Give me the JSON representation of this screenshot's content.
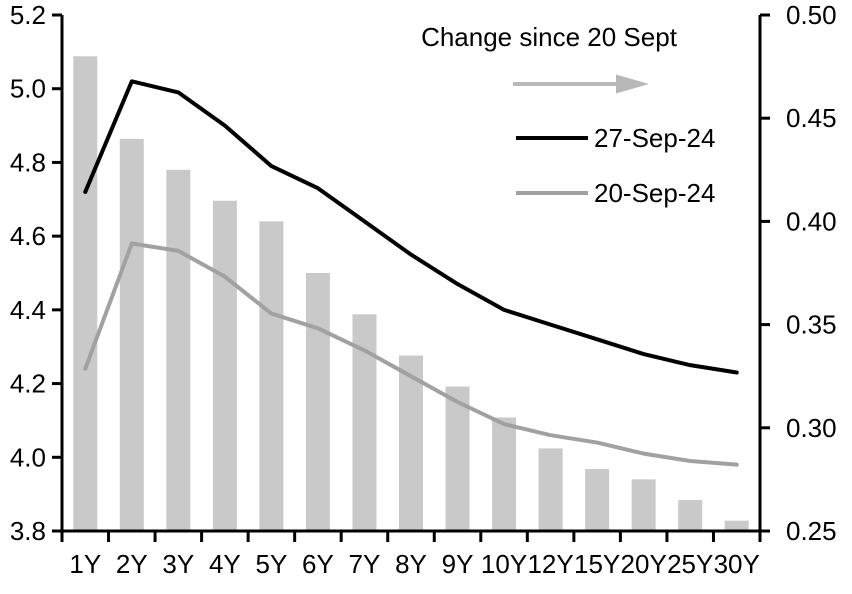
{
  "chart_data": {
    "type": "bar",
    "subtype": "bar-line-combo",
    "categories": [
      "1Y",
      "2Y",
      "3Y",
      "4Y",
      "5Y",
      "6Y",
      "7Y",
      "8Y",
      "9Y",
      "10Y",
      "12Y",
      "15Y",
      "20Y",
      "25Y",
      "30Y"
    ],
    "series": [
      {
        "name": "Change since 20 Sept",
        "type": "bar",
        "axis": "right",
        "color": "#c9c9c9",
        "values": [
          0.48,
          0.44,
          0.425,
          0.41,
          0.4,
          0.375,
          0.355,
          0.335,
          0.32,
          0.305,
          0.29,
          0.28,
          0.275,
          0.265,
          0.255
        ]
      },
      {
        "name": "27-Sep-24",
        "type": "line",
        "axis": "left",
        "color": "#000000",
        "values": [
          4.72,
          5.02,
          4.99,
          4.9,
          4.79,
          4.73,
          4.64,
          4.55,
          4.47,
          4.4,
          4.36,
          4.32,
          4.28,
          4.25,
          4.23
        ]
      },
      {
        "name": "20-Sep-24",
        "type": "line",
        "axis": "left",
        "color": "#a1a1a1",
        "values": [
          4.24,
          4.58,
          4.56,
          4.49,
          4.39,
          4.35,
          4.29,
          4.22,
          4.15,
          4.09,
          4.06,
          4.04,
          4.01,
          3.99,
          3.98
        ]
      }
    ],
    "left_axis": {
      "min": 3.8,
      "max": 5.2,
      "ticks": [
        "5.2",
        "5.0",
        "4.8",
        "4.6",
        "4.4",
        "4.2",
        "4.0",
        "3.8"
      ]
    },
    "right_axis": {
      "min": 0.25,
      "max": 0.5,
      "ticks": [
        "0.50",
        "0.45",
        "0.40",
        "0.35",
        "0.30",
        "0.25"
      ]
    },
    "grid": false,
    "legend_position": "top-right-inside",
    "legend": {
      "title": "Change since 20 Sept",
      "arrow_icon": "right-arrow",
      "arrow_color": "#b8b8b8",
      "entries": [
        {
          "label": "27-Sep-24",
          "color": "#000000"
        },
        {
          "label": "20-Sep-24",
          "color": "#a1a1a1"
        }
      ]
    },
    "title": "",
    "xlabel": "",
    "ylabel_left": "",
    "ylabel_right": ""
  }
}
